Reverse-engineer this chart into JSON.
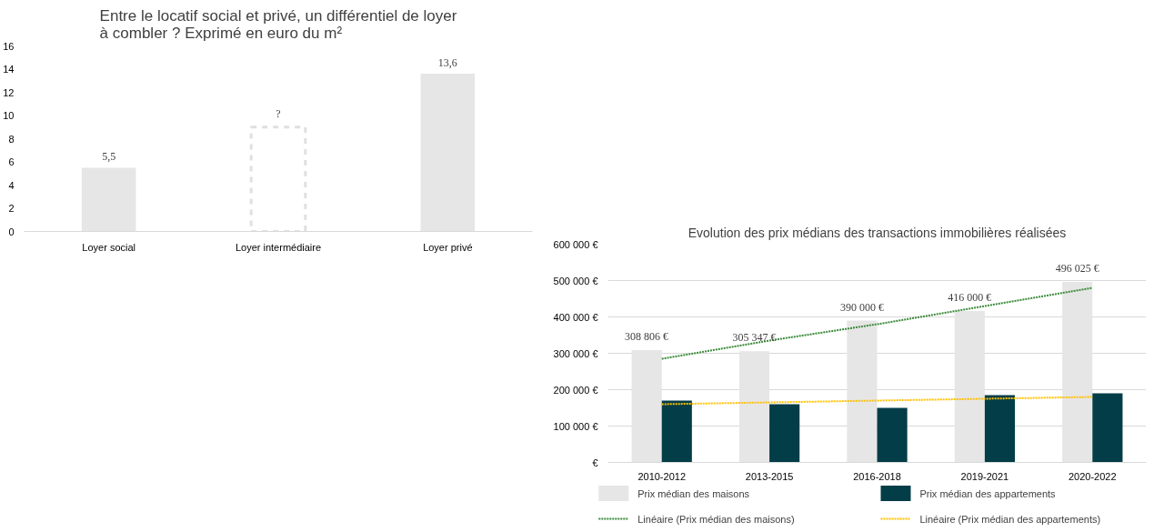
{
  "chart_data": [
    {
      "type": "bar",
      "title": "Entre le locatif social et privé, un différentiel de loyer à combler ? Exprimé en euro du m²",
      "categories": [
        "Loyer social",
        "Loyer intermédiaire",
        "Loyer privé"
      ],
      "stacked": true,
      "ylim": [
        0,
        16
      ],
      "yticks": [
        0,
        2,
        4,
        6,
        8,
        10,
        12,
        14,
        16
      ],
      "grid": false,
      "legend": false,
      "series": [
        {
          "color": "#e7e6e6",
          "values": [
            5.5,
            null,
            13.6
          ],
          "value_labels": [
            "5,5",
            null,
            "13,6"
          ]
        },
        {
          "color": "#e0e0e0",
          "values": [
            null,
            9,
            null
          ],
          "value_labels": [
            null,
            "?",
            null
          ],
          "line_style": "dashed"
        }
      ]
    },
    {
      "type": "bar",
      "title": "Evolution des prix médians des transactions immobilières réalisées",
      "categories": [
        "2010-2012",
        "2013-2015",
        "2016-2018",
        "2019-2021",
        "2020-2022"
      ],
      "ylim": [
        0,
        600000
      ],
      "yticks": [
        {
          "value": 0,
          "label": "€"
        },
        {
          "value": 100000,
          "label": "100 000 €"
        },
        {
          "value": 200000,
          "label": "200 000 €"
        },
        {
          "value": 300000,
          "label": "300 000 €"
        },
        {
          "value": 400000,
          "label": "400 000 €"
        },
        {
          "value": 500000,
          "label": "500 000 €"
        },
        {
          "value": 600000,
          "label": "600 000 €"
        }
      ],
      "grid": "y",
      "legend": "bottom",
      "series": [
        {
          "name": "Prix médian des maisons",
          "color": "#e7e6e6",
          "values": [
            308806,
            305347,
            390000,
            416000,
            496025
          ],
          "value_labels": [
            "308 806 €",
            "305 347 €",
            "390 000 €",
            "416 000 €",
            "496 025 €"
          ]
        },
        {
          "name": "Prix médian des appartements",
          "color": "#033d47",
          "values": [
            170000,
            160000,
            150000,
            185000,
            190000
          ]
        },
        {
          "name": "Linéaire (Prix médian des maisons)",
          "type": "line",
          "line_style": "dotted",
          "color": "#3a8a3a",
          "values": [
            285000,
            335000,
            380000,
            430000,
            480000
          ]
        },
        {
          "name": "Linéaire (Prix médian des appartements)",
          "type": "line",
          "line_style": "dotted",
          "color": "#ffc000",
          "values": [
            160000,
            165000,
            170000,
            175000,
            180000
          ]
        }
      ]
    }
  ]
}
